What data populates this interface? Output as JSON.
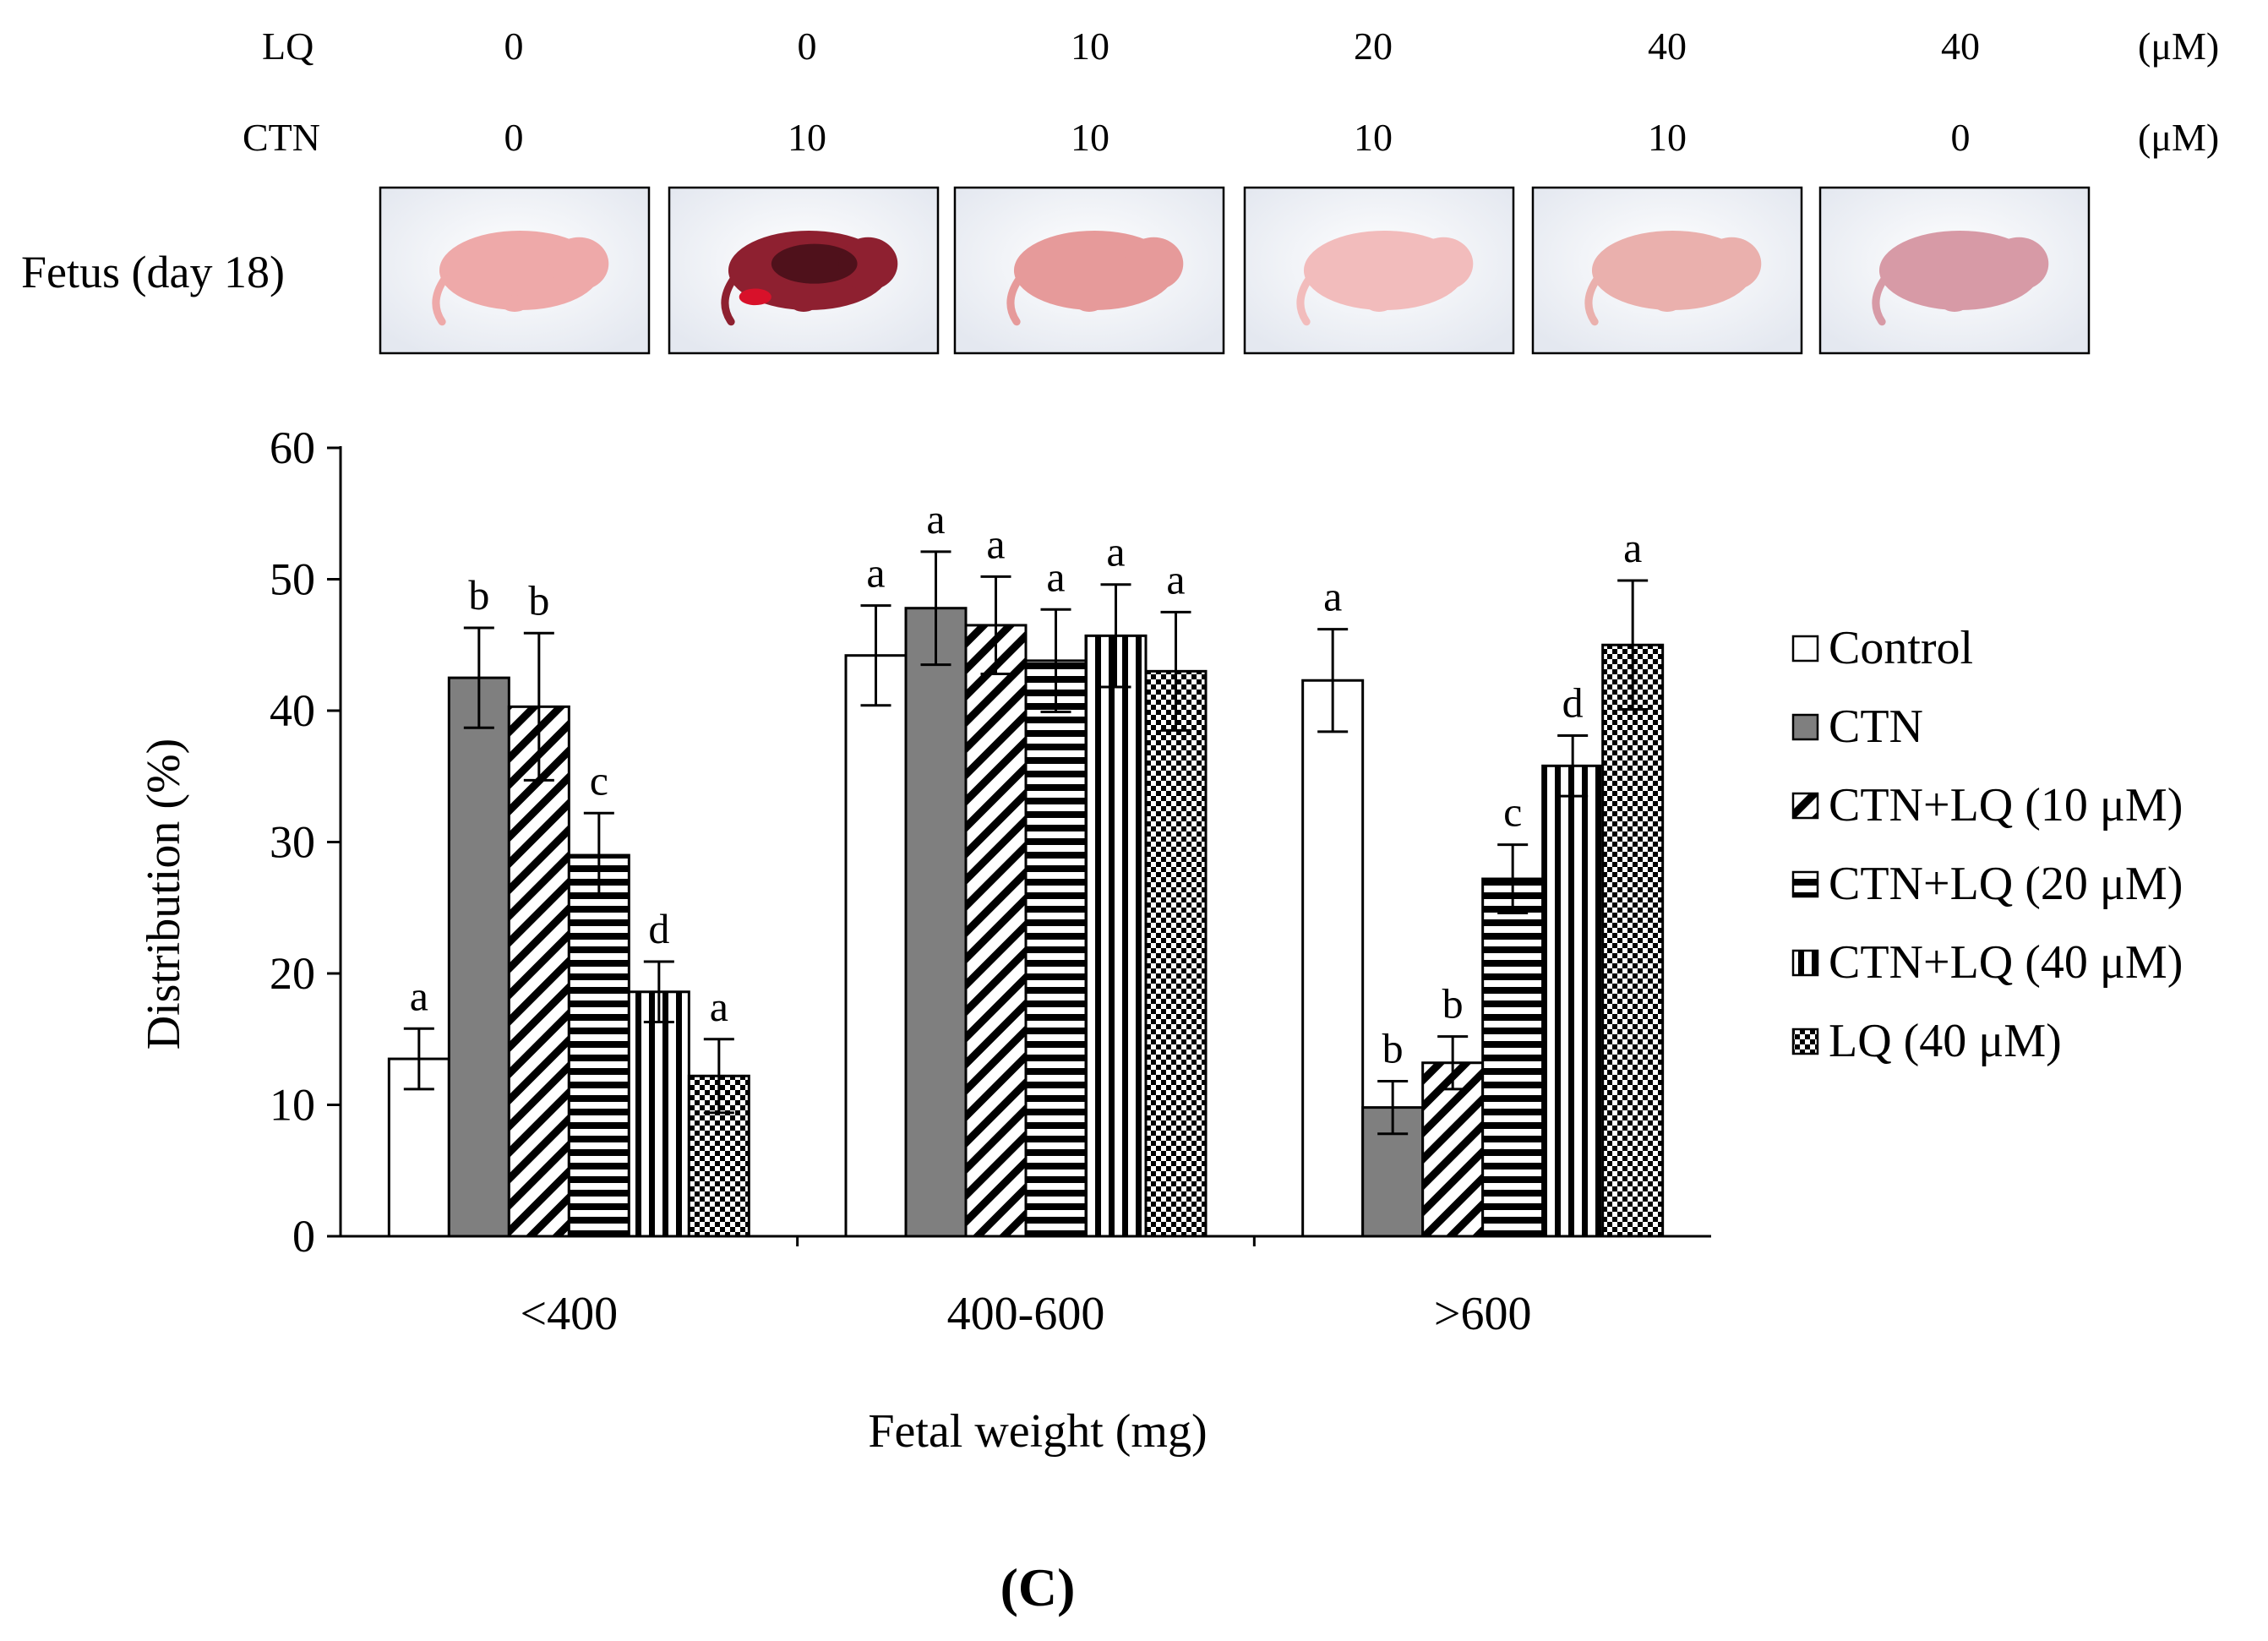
{
  "treatment_table": {
    "rows": [
      {
        "label": "LQ",
        "values": [
          "0",
          "0",
          "10",
          "20",
          "40",
          "40"
        ],
        "unit": "(μM)"
      },
      {
        "label": "CTN",
        "values": [
          "0",
          "10",
          "10",
          "10",
          "10",
          "0"
        ],
        "unit": "(μM)"
      }
    ],
    "fetus_row_label": "Fetus (day 18)",
    "fetus_photos": [
      {
        "name": "control",
        "body_color": "#eea9a9",
        "dark": false
      },
      {
        "name": "ctn",
        "body_color": "#8e2030",
        "dark": true
      },
      {
        "name": "ctn-lq10",
        "body_color": "#e69a9a",
        "dark": false
      },
      {
        "name": "ctn-lq20",
        "body_color": "#f2bcbc",
        "dark": false
      },
      {
        "name": "ctn-lq40",
        "body_color": "#eab0ad",
        "dark": false
      },
      {
        "name": "lq40",
        "body_color": "#d79aa6",
        "dark": false
      }
    ]
  },
  "chart_data": {
    "type": "bar",
    "title": "",
    "xlabel": "Fetal weight (mg)",
    "ylabel": "Distribution (%)",
    "ylim": [
      0,
      60
    ],
    "yticks": [
      0,
      10,
      20,
      30,
      40,
      50,
      60
    ],
    "grid": false,
    "legend_position": "right",
    "categories": [
      "<400",
      "400-600",
      ">600"
    ],
    "series": [
      {
        "name": "Control",
        "pattern": "white",
        "values": [
          13.5,
          44.2,
          42.3
        ],
        "errors": [
          2.3,
          3.8,
          3.9
        ],
        "letters": [
          "a",
          "a",
          "a"
        ]
      },
      {
        "name": "CTN",
        "pattern": "gray",
        "values": [
          42.5,
          47.8,
          9.8
        ],
        "errors": [
          3.8,
          4.3,
          2.0
        ],
        "letters": [
          "b",
          "a",
          "b"
        ]
      },
      {
        "name": "CTN+LQ (10 μM)",
        "pattern": "diag",
        "values": [
          40.3,
          46.5,
          13.2
        ],
        "errors": [
          5.6,
          3.7,
          2.0
        ],
        "letters": [
          "b",
          "a",
          "b"
        ]
      },
      {
        "name": "CTN+LQ (20 μM)",
        "pattern": "hstripe",
        "values": [
          29.0,
          43.8,
          27.2
        ],
        "errors": [
          3.2,
          3.9,
          2.6
        ],
        "letters": [
          "c",
          "a",
          "c"
        ]
      },
      {
        "name": "CTN+LQ (40 μM)",
        "pattern": "vstripe",
        "values": [
          18.6,
          45.7,
          35.8
        ],
        "errors": [
          2.3,
          3.9,
          2.3
        ],
        "letters": [
          "d",
          "a",
          "d"
        ]
      },
      {
        "name": "LQ (40 μM)",
        "pattern": "check",
        "values": [
          12.2,
          43.0,
          45.0
        ],
        "errors": [
          2.8,
          4.5,
          4.9
        ],
        "letters": [
          "a",
          "a",
          "a"
        ]
      }
    ]
  },
  "panel_label": "(C)"
}
